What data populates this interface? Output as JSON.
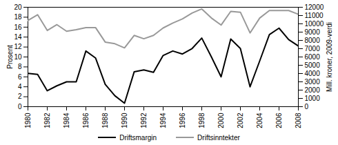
{
  "chart_data": {
    "type": "line",
    "x": [
      1980,
      1981,
      1982,
      1983,
      1984,
      1985,
      1986,
      1987,
      1988,
      1989,
      1990,
      1991,
      1992,
      1993,
      1994,
      1995,
      1996,
      1997,
      1998,
      1999,
      2000,
      2001,
      2002,
      2003,
      2004,
      2005,
      2006,
      2007,
      2008
    ],
    "xlim": [
      1980,
      2008
    ],
    "xticks": [
      1980,
      1982,
      1984,
      1986,
      1988,
      1990,
      1992,
      1994,
      1996,
      1998,
      2000,
      2002,
      2004,
      2006,
      2008
    ],
    "ylabel": "Prosent",
    "ylim": [
      0,
      20
    ],
    "yticks": [
      0,
      2,
      4,
      6,
      8,
      10,
      12,
      14,
      16,
      18,
      20
    ],
    "y2label": "Mill. kroner, 2009-verdi",
    "y2lim": [
      0,
      12000
    ],
    "y2ticks": [
      0,
      1000,
      2000,
      3000,
      4000,
      5000,
      6000,
      7000,
      8000,
      9000,
      10000,
      11000,
      12000
    ],
    "grid": false,
    "legend": "bottom",
    "series": [
      {
        "name": "Driftsmargin",
        "color": "#000000",
        "values": [
          6.7,
          6.5,
          3.2,
          4.2,
          5.0,
          5.0,
          11.2,
          9.8,
          4.5,
          2.2,
          0.7,
          7.0,
          7.4,
          6.9,
          10.3,
          11.2,
          10.6,
          11.7,
          13.8,
          10.0,
          6.0,
          13.6,
          11.7,
          4.0,
          9.2,
          14.5,
          15.8,
          13.5,
          12.2
        ]
      },
      {
        "name": "Driftsinntekter",
        "color": "#999999",
        "axis": "y2",
        "values": [
          10400,
          11100,
          9200,
          9900,
          9100,
          9300,
          9550,
          9550,
          7800,
          7600,
          7100,
          8600,
          8200,
          8600,
          9500,
          10100,
          10600,
          11300,
          11800,
          10700,
          9850,
          11500,
          11400,
          8900,
          10700,
          11600,
          11600,
          11600,
          11150
        ]
      }
    ]
  }
}
